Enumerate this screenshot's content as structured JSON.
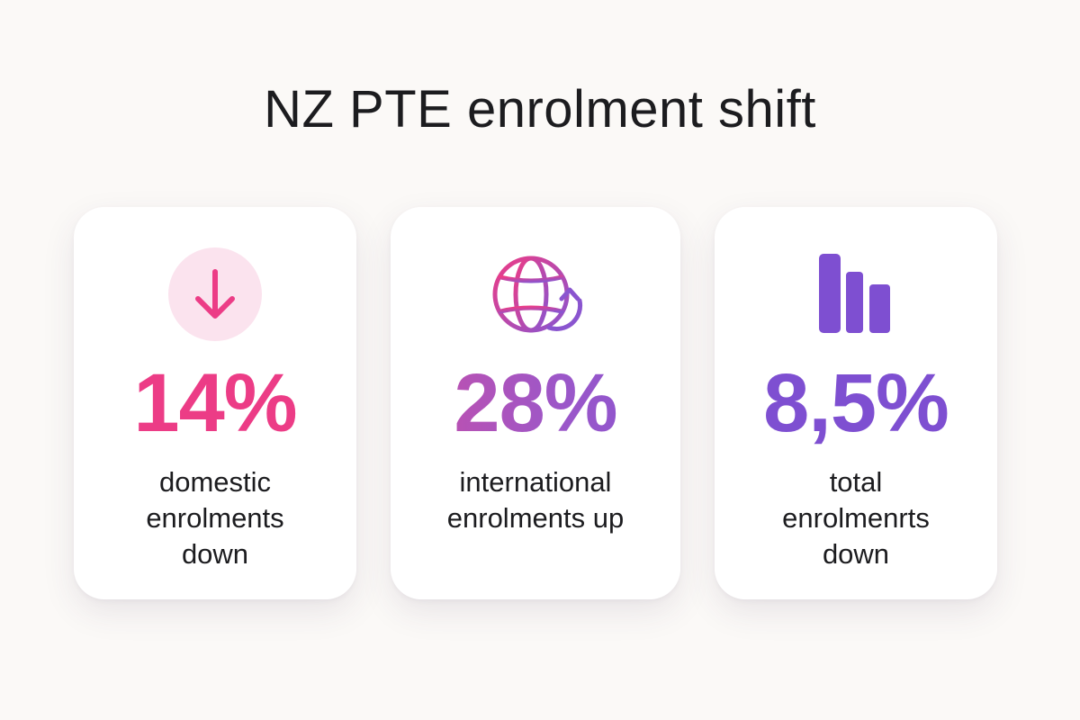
{
  "title": "NZ PTE enrolment shift",
  "colors": {
    "pink": "#ec3c86",
    "pink_soft": "#fbe3ee",
    "magenta": "#c84fa8",
    "purple": "#7e4fd1",
    "text": "#1c1c1f",
    "background": "#fbf9f7"
  },
  "cards": [
    {
      "icon": "arrow-down-icon",
      "value": "14%",
      "label_lines": [
        "domestic",
        "enrolments",
        "down"
      ]
    },
    {
      "icon": "globe-refresh-icon",
      "value": "28%",
      "label_lines": [
        "international",
        "enrolments up"
      ]
    },
    {
      "icon": "bar-chart-icon",
      "value": "8,5%",
      "label_lines": [
        "total",
        "enrolmenrts",
        "down"
      ]
    }
  ]
}
